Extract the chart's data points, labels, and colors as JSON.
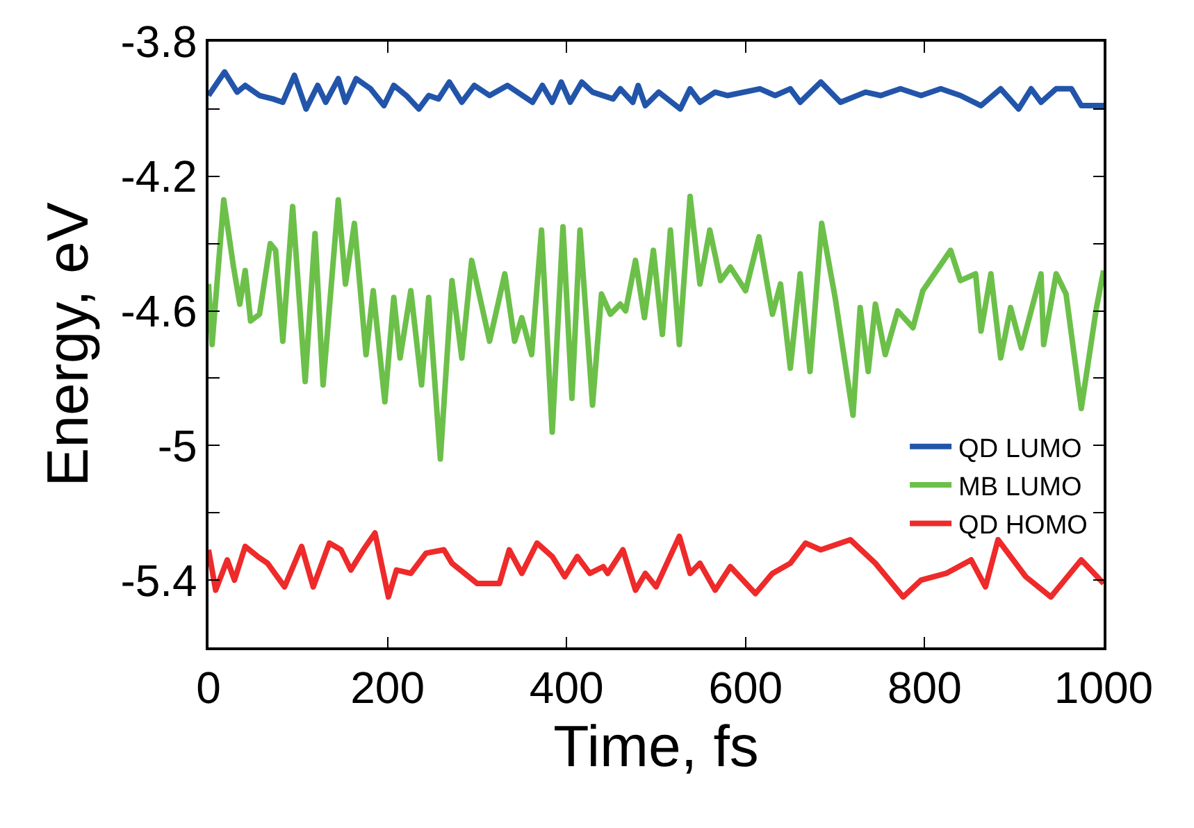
{
  "chart_data": {
    "type": "line",
    "xlabel": "Time, fs",
    "ylabel": "Energy, eV",
    "xlim": [
      0,
      1000
    ],
    "xticks": [
      0,
      200,
      400,
      600,
      800,
      1000
    ],
    "ylim": [
      -5.6,
      -3.8
    ],
    "yticks": [
      -3.8,
      {
        "value": -4.0,
        "label": null
      },
      -4.2,
      {
        "value": -4.4,
        "label": null
      },
      -4.6,
      {
        "value": -4.8,
        "label": null
      },
      -5,
      {
        "value": -5.2,
        "label": null
      },
      -5.4,
      {
        "value": -5.6,
        "label": null
      }
    ],
    "legend": "bottom right",
    "marker": "none",
    "line_style": "solid",
    "series": [
      {
        "name": "QD LUMO",
        "color": "#2255aa",
        "x": [
          0,
          18,
          32,
          41,
          57,
          72,
          83,
          96,
          109,
          122,
          131,
          145,
          153,
          165,
          181,
          196,
          207,
          221,
          235,
          246,
          257,
          269,
          283,
          297,
          314,
          334,
          362,
          373,
          384,
          394,
          404,
          417,
          429,
          452,
          460,
          474,
          480,
          488,
          503,
          527,
          538,
          549,
          566,
          580,
          616,
          633,
          650,
          661,
          684,
          706,
          734,
          751,
          773,
          796,
          818,
          840,
          863,
          885,
          905,
          919,
          930,
          947,
          964,
          975,
          1000
        ],
        "values": [
          -3.96,
          -3.89,
          -3.95,
          -3.93,
          -3.96,
          -3.97,
          -3.98,
          -3.9,
          -4.0,
          -3.93,
          -3.98,
          -3.91,
          -3.98,
          -3.91,
          -3.94,
          -3.99,
          -3.93,
          -3.96,
          -4.0,
          -3.96,
          -3.97,
          -3.92,
          -3.98,
          -3.93,
          -3.96,
          -3.93,
          -3.98,
          -3.93,
          -3.98,
          -3.92,
          -3.98,
          -3.92,
          -3.95,
          -3.97,
          -3.94,
          -3.98,
          -3.93,
          -3.99,
          -3.95,
          -4.0,
          -3.94,
          -3.98,
          -3.95,
          -3.96,
          -3.94,
          -3.96,
          -3.94,
          -3.98,
          -3.92,
          -3.98,
          -3.95,
          -3.96,
          -3.94,
          -3.96,
          -3.94,
          -3.96,
          -3.99,
          -3.94,
          -4.0,
          -3.94,
          -3.98,
          -3.94,
          -3.94,
          -3.99,
          -3.99
        ]
      },
      {
        "name": "MB LUMO",
        "color": "#6cc04a",
        "x": [
          0,
          4,
          17,
          28,
          35,
          41,
          47,
          57,
          69,
          75,
          83,
          94,
          108,
          119,
          128,
          145,
          153,
          163,
          176,
          184,
          197,
          207,
          214,
          226,
          238,
          246,
          259,
          272,
          283,
          294,
          314,
          331,
          342,
          350,
          361,
          372,
          384,
          396,
          406,
          415,
          429,
          439,
          449,
          460,
          466,
          477,
          487,
          497,
          507,
          516,
          526,
          538,
          549,
          560,
          572,
          583,
          600,
          615,
          630,
          639,
          650,
          661,
          672,
          685,
          700,
          720,
          728,
          737,
          745,
          756,
          770,
          787,
          798,
          829,
          840,
          857,
          863,
          874,
          885,
          896,
          908,
          930,
          933,
          947,
          958,
          975,
          992,
          1000
        ],
        "values": [
          -4.52,
          -4.7,
          -4.27,
          -4.47,
          -4.58,
          -4.48,
          -4.63,
          -4.61,
          -4.4,
          -4.42,
          -4.69,
          -4.29,
          -4.81,
          -4.37,
          -4.82,
          -4.27,
          -4.52,
          -4.34,
          -4.73,
          -4.54,
          -4.87,
          -4.56,
          -4.74,
          -4.54,
          -4.82,
          -4.56,
          -5.04,
          -4.51,
          -4.74,
          -4.45,
          -4.69,
          -4.49,
          -4.69,
          -4.62,
          -4.73,
          -4.36,
          -4.96,
          -4.35,
          -4.86,
          -4.36,
          -4.88,
          -4.55,
          -4.61,
          -4.58,
          -4.6,
          -4.45,
          -4.62,
          -4.42,
          -4.67,
          -4.36,
          -4.7,
          -4.26,
          -4.52,
          -4.36,
          -4.51,
          -4.47,
          -4.54,
          -4.38,
          -4.61,
          -4.52,
          -4.77,
          -4.49,
          -4.78,
          -4.34,
          -4.56,
          -4.91,
          -4.59,
          -4.78,
          -4.58,
          -4.73,
          -4.6,
          -4.65,
          -4.54,
          -4.42,
          -4.51,
          -4.49,
          -4.66,
          -4.49,
          -4.74,
          -4.59,
          -4.71,
          -4.49,
          -4.7,
          -4.49,
          -4.55,
          -4.89,
          -4.59,
          -4.48
        ]
      },
      {
        "name": "QD HOMO",
        "color": "#ee2a2a",
        "x": [
          0,
          8,
          21,
          29,
          41,
          55,
          66,
          85,
          104,
          117,
          135,
          148,
          159,
          173,
          186,
          201,
          210,
          226,
          243,
          263,
          272,
          300,
          325,
          336,
          350,
          367,
          384,
          398,
          412,
          426,
          441,
          446,
          463,
          477,
          488,
          500,
          526,
          538,
          549,
          566,
          583,
          611,
          630,
          650,
          667,
          684,
          717,
          745,
          776,
          796,
          824,
          852,
          868,
          882,
          913,
          941,
          975,
          1000
        ],
        "values": [
          -5.31,
          -5.43,
          -5.34,
          -5.4,
          -5.3,
          -5.33,
          -5.35,
          -5.42,
          -5.3,
          -5.42,
          -5.29,
          -5.31,
          -5.37,
          -5.31,
          -5.26,
          -5.45,
          -5.37,
          -5.38,
          -5.32,
          -5.31,
          -5.35,
          -5.41,
          -5.41,
          -5.31,
          -5.38,
          -5.29,
          -5.33,
          -5.39,
          -5.33,
          -5.38,
          -5.36,
          -5.38,
          -5.31,
          -5.43,
          -5.38,
          -5.42,
          -5.27,
          -5.38,
          -5.35,
          -5.43,
          -5.36,
          -5.44,
          -5.38,
          -5.35,
          -5.29,
          -5.31,
          -5.28,
          -5.35,
          -5.45,
          -5.4,
          -5.38,
          -5.34,
          -5.42,
          -5.28,
          -5.39,
          -5.45,
          -5.34,
          -5.41
        ]
      }
    ]
  }
}
